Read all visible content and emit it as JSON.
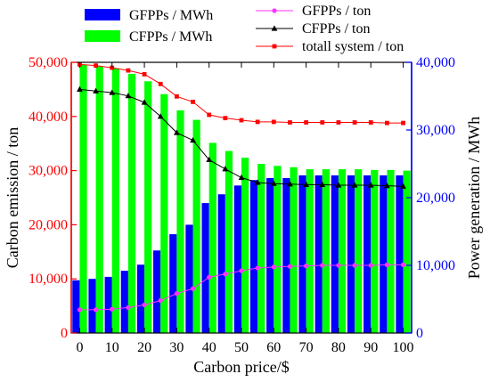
{
  "chart_data": {
    "type": "bar",
    "xlabel": "Carbon price/$",
    "ylabel_left": "Carbon emission / ton",
    "ylabel_right": "Power generation / MWh",
    "x": [
      0,
      5,
      10,
      15,
      20,
      25,
      30,
      35,
      40,
      45,
      50,
      55,
      60,
      65,
      70,
      75,
      80,
      85,
      90,
      95,
      100
    ],
    "x_ticks": [
      0,
      10,
      20,
      30,
      40,
      50,
      60,
      70,
      80,
      90,
      100
    ],
    "ylim_left": [
      0,
      50000
    ],
    "ylim_right": [
      0,
      40000
    ],
    "y_ticks_left": [
      "0",
      "10,000",
      "20,000",
      "30,000",
      "40,000",
      "50,000"
    ],
    "y_ticks_right": [
      "0",
      "10,000",
      "20,000",
      "30,000",
      "40,000"
    ],
    "y_ticks_left_values": [
      0,
      10000,
      20000,
      30000,
      40000,
      50000
    ],
    "y_ticks_right_values": [
      0,
      10000,
      20000,
      30000,
      40000
    ],
    "colors": {
      "left_axis": "#ff0000",
      "right_axis": "#0000ff",
      "gfpps_bar": "#0000ff",
      "cfpps_bar": "#00ff00",
      "gfpps_line": "#ff33ff",
      "cfpps_line": "#000000",
      "total_line": "#ff0000"
    },
    "bar_series": [
      {
        "name": "GFPPs / MWh",
        "axis": "right",
        "values": [
          7800,
          8000,
          8300,
          9200,
          10100,
          12200,
          14600,
          16000,
          19200,
          20500,
          21800,
          22600,
          22900,
          22900,
          23300,
          23300,
          23300,
          23300,
          23300,
          23300,
          23300
        ]
      },
      {
        "name": "CFPPs / MWh",
        "axis": "right",
        "values": [
          39600,
          39400,
          39100,
          38300,
          37200,
          35300,
          32900,
          31500,
          28100,
          26900,
          25900,
          25000,
          24700,
          24500,
          24200,
          24200,
          24200,
          24200,
          24100,
          24100,
          24000
        ]
      }
    ],
    "line_series": [
      {
        "name": "GFPPs / ton",
        "axis": "left",
        "marker": "circle",
        "values": [
          4300,
          4300,
          4400,
          4700,
          5200,
          6000,
          7300,
          8200,
          10300,
          10900,
          11500,
          12000,
          12200,
          12300,
          12400,
          12500,
          12500,
          12500,
          12500,
          12600,
          12600
        ]
      },
      {
        "name": "CFPPs / ton",
        "axis": "left",
        "marker": "triangle",
        "values": [
          45000,
          44700,
          44400,
          43800,
          42600,
          40000,
          37000,
          35600,
          32000,
          30300,
          28700,
          27800,
          27600,
          27500,
          27400,
          27400,
          27300,
          27300,
          27300,
          27200,
          27100
        ]
      },
      {
        "name": "totall system / ton",
        "axis": "left",
        "marker": "square",
        "values": [
          49600,
          49400,
          49000,
          48500,
          47800,
          46000,
          43700,
          42700,
          40300,
          39700,
          39300,
          39000,
          39000,
          38900,
          38900,
          38900,
          38900,
          38900,
          38900,
          38800,
          38800
        ]
      }
    ]
  }
}
